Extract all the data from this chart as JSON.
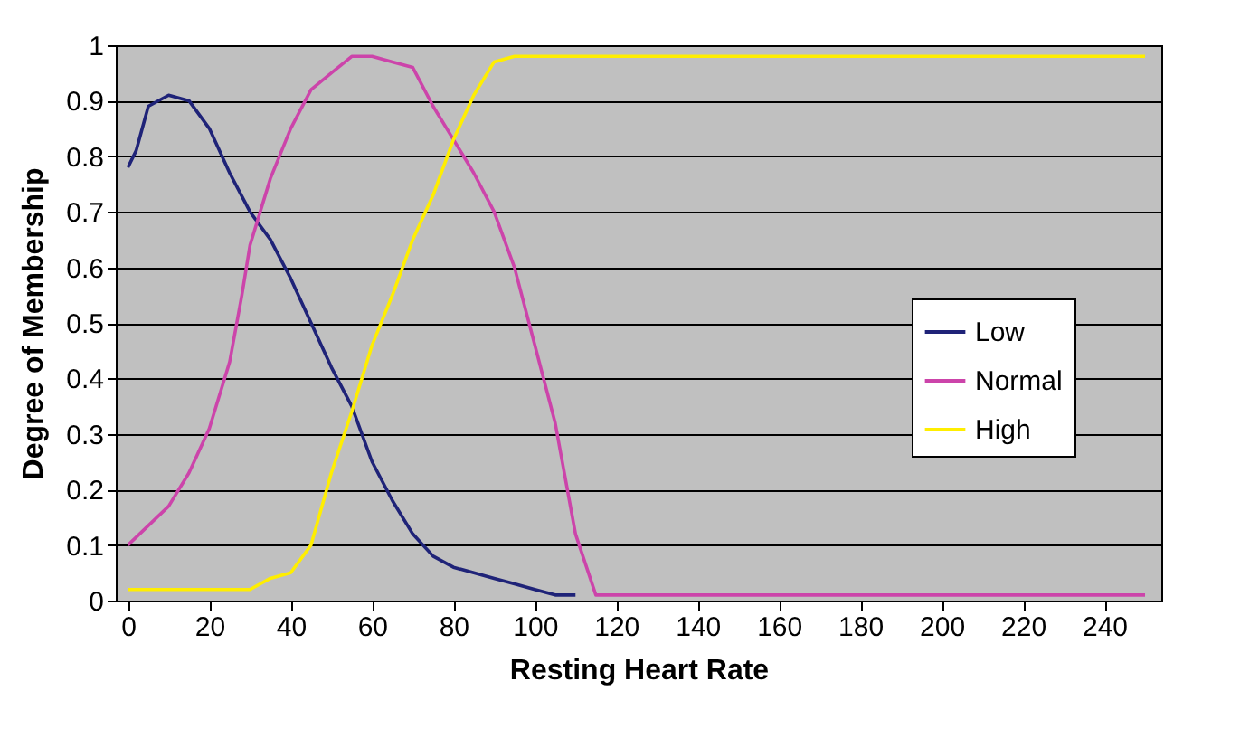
{
  "chart_data": {
    "type": "line",
    "xlabel": "Resting Heart Rate",
    "ylabel": "Degree of Membership",
    "xlim": [
      -3,
      254
    ],
    "xticks": [
      0,
      20,
      40,
      60,
      80,
      100,
      120,
      140,
      160,
      180,
      200,
      220,
      240
    ],
    "ylim": [
      0,
      1
    ],
    "yticks": [
      0,
      0.1,
      0.2,
      0.3,
      0.4,
      0.5,
      0.6,
      0.7,
      0.8,
      0.9,
      1
    ],
    "grid": "y",
    "legend": "right",
    "marker": "none",
    "line_style": "solid",
    "series": [
      {
        "name": "Low",
        "color": "#1f2378",
        "x": [
          0,
          2,
          5,
          10,
          15,
          20,
          25,
          30,
          35,
          40,
          45,
          50,
          55,
          60,
          65,
          70,
          75,
          80,
          85,
          90,
          95,
          100,
          105,
          110
        ],
        "values": [
          0.78,
          0.81,
          0.89,
          0.91,
          0.9,
          0.85,
          0.77,
          0.7,
          0.65,
          0.58,
          0.5,
          0.42,
          0.35,
          0.25,
          0.18,
          0.12,
          0.08,
          0.06,
          0.05,
          0.04,
          0.03,
          0.02,
          0.01,
          0.01
        ]
      },
      {
        "name": "Normal",
        "color": "#cc44aa",
        "x": [
          0,
          10,
          15,
          20,
          25,
          28,
          30,
          35,
          40,
          45,
          50,
          55,
          60,
          65,
          70,
          75,
          80,
          85,
          90,
          95,
          100,
          105,
          110,
          115,
          250
        ],
        "values": [
          0.1,
          0.17,
          0.23,
          0.31,
          0.43,
          0.55,
          0.64,
          0.76,
          0.85,
          0.92,
          0.95,
          0.98,
          0.98,
          0.97,
          0.96,
          0.89,
          0.83,
          0.77,
          0.7,
          0.6,
          0.46,
          0.32,
          0.12,
          0.01,
          0.01
        ]
      },
      {
        "name": "High",
        "color": "#ffee00",
        "x": [
          0,
          30,
          35,
          40,
          45,
          50,
          55,
          60,
          65,
          70,
          75,
          80,
          85,
          90,
          95,
          250
        ],
        "values": [
          0.02,
          0.02,
          0.04,
          0.05,
          0.1,
          0.23,
          0.34,
          0.46,
          0.55,
          0.65,
          0.73,
          0.83,
          0.91,
          0.97,
          0.98,
          0.98
        ]
      }
    ]
  }
}
